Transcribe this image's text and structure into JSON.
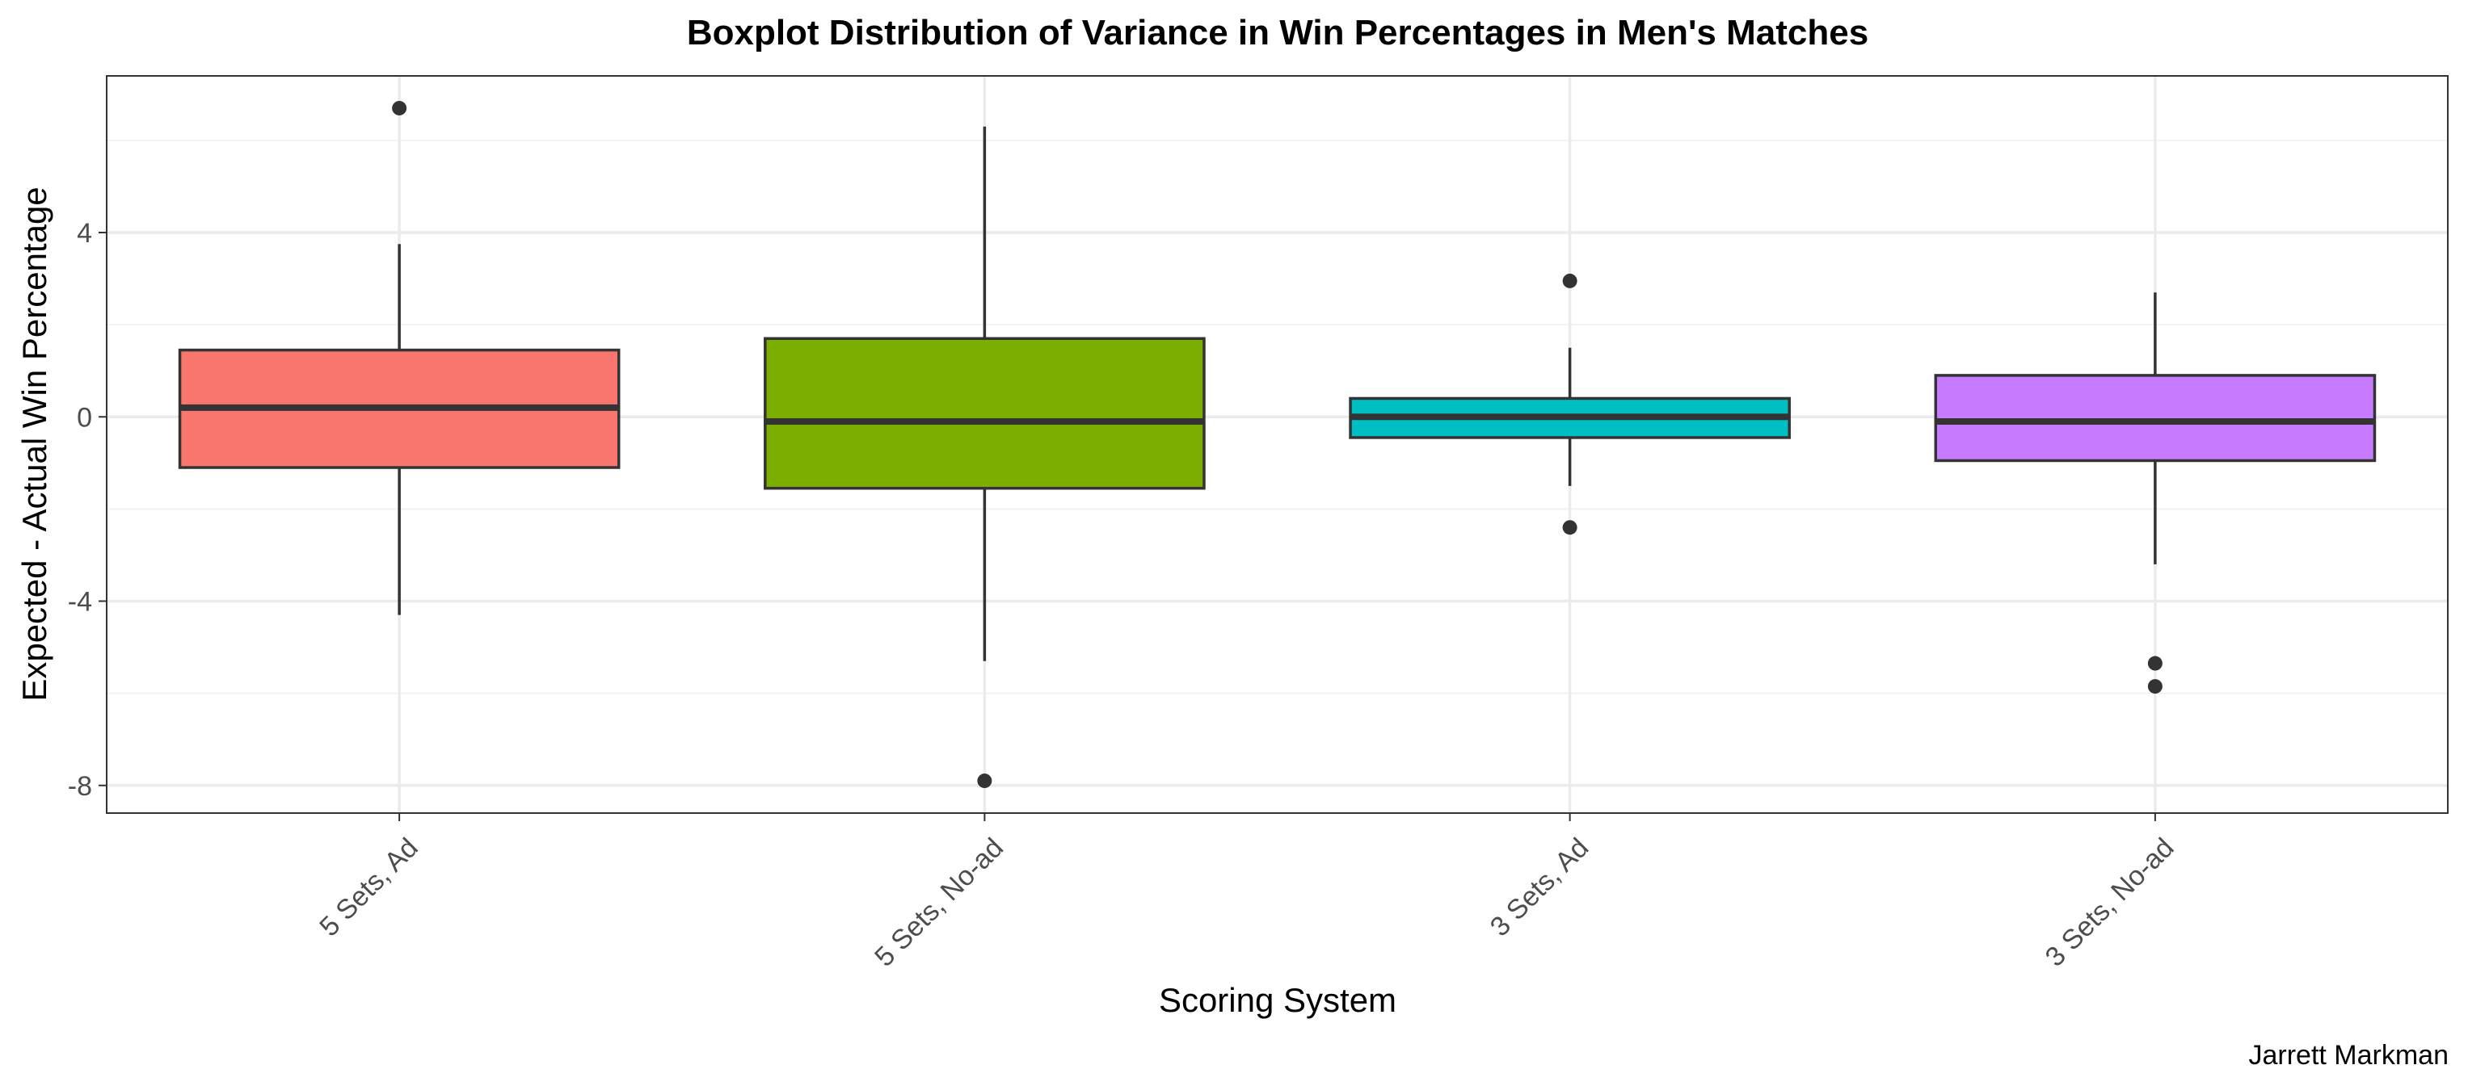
{
  "chart_data": {
    "type": "boxplot",
    "title": "Boxplot Distribution of Variance in Win Percentages in Men's Matches",
    "xlabel": "Scoring System",
    "ylabel": "Expected - Actual Win Percentage",
    "caption": "Jarrett Markman",
    "ylim": [
      -8.6,
      7.4
    ],
    "yticks": [
      -8,
      -4,
      0,
      4
    ],
    "ytick_labels": [
      "-8",
      "-4",
      "0",
      "4"
    ],
    "grid": true,
    "legend": "none",
    "categories": [
      "5 Sets, Ad",
      "5 Sets, No-ad",
      "3 Sets, Ad",
      "3 Sets, No-ad"
    ],
    "boxes": [
      {
        "category": "5 Sets, Ad",
        "color": "#F8766D",
        "whisker_low": -4.3,
        "q1": -1.1,
        "median": 0.2,
        "q3": 1.45,
        "whisker_high": 3.75,
        "outliers": [
          6.7
        ]
      },
      {
        "category": "5 Sets, No-ad",
        "color": "#7CAE00",
        "whisker_low": -5.3,
        "q1": -1.55,
        "median": -0.1,
        "q3": 1.7,
        "whisker_high": 6.3,
        "outliers": [
          -7.9
        ]
      },
      {
        "category": "3 Sets, Ad",
        "color": "#00BFC4",
        "whisker_low": -1.5,
        "q1": -0.45,
        "median": 0.0,
        "q3": 0.4,
        "whisker_high": 1.5,
        "outliers": [
          2.95,
          -2.4
        ]
      },
      {
        "category": "3 Sets, No-ad",
        "color": "#C77CFF",
        "whisker_low": -3.2,
        "q1": -0.95,
        "median": -0.1,
        "q3": 0.9,
        "whisker_high": 2.7,
        "outliers": [
          -5.35,
          -5.85
        ]
      }
    ]
  }
}
